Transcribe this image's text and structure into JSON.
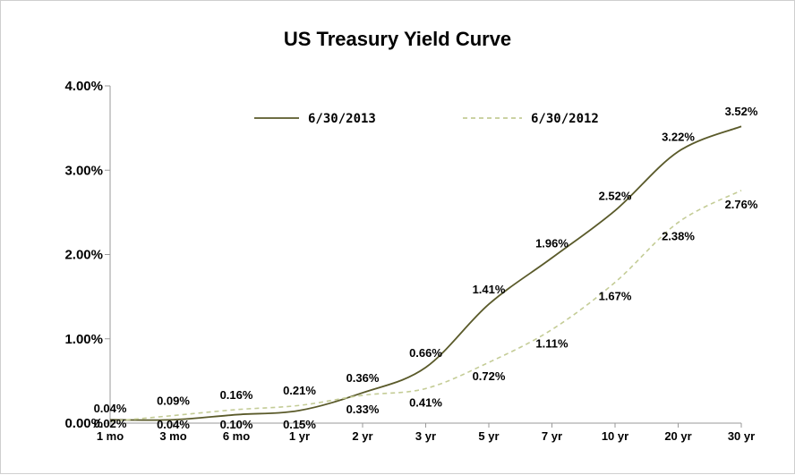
{
  "chart_data": {
    "type": "line",
    "title": "US Treasury Yield Curve",
    "xlabel": "",
    "ylabel": "",
    "categories": [
      "1 mo",
      "3 mo",
      "6 mo",
      "1 yr",
      "2 yr",
      "3 yr",
      "5 yr",
      "7 yr",
      "10 yr",
      "20 yr",
      "30 yr"
    ],
    "y_ticks": [
      "0.00%",
      "1.00%",
      "2.00%",
      "3.00%",
      "4.00%"
    ],
    "ylim": [
      0,
      4
    ],
    "grid": false,
    "legend_position": "top",
    "series": [
      {
        "name": "6/30/2013",
        "color": "#5a5a2a",
        "style": "solid",
        "values": [
          0.04,
          0.04,
          0.1,
          0.15,
          0.36,
          0.66,
          1.41,
          1.96,
          2.52,
          3.22,
          3.52
        ],
        "labels": [
          "0.04%",
          "0.04%",
          "0.10%",
          "0.15%",
          "0.36%",
          "0.66%",
          "1.41%",
          "1.96%",
          "2.52%",
          "3.22%",
          "3.52%"
        ]
      },
      {
        "name": "6/30/2012",
        "color": "#c4cc96",
        "style": "dashed",
        "values": [
          0.02,
          0.09,
          0.16,
          0.21,
          0.33,
          0.41,
          0.72,
          1.11,
          1.67,
          2.38,
          2.76
        ],
        "labels": [
          "0.02%",
          "0.09%",
          "0.16%",
          "0.21%",
          "0.33%",
          "0.41%",
          "0.72%",
          "1.11%",
          "1.67%",
          "2.38%",
          "2.76%"
        ]
      }
    ]
  }
}
